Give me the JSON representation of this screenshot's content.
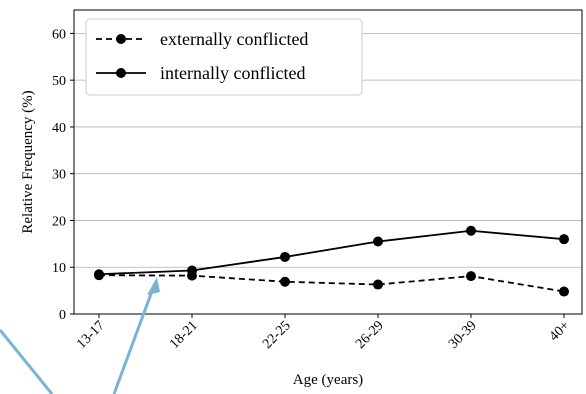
{
  "chart_data": {
    "type": "line",
    "title": "",
    "xlabel": "Age (years)",
    "ylabel": "Relative Frequency (%)",
    "categories": [
      "13-17",
      "18-21",
      "22-25",
      "26-29",
      "30-39",
      "40+"
    ],
    "y_ticks": [
      "0",
      "10",
      "20",
      "30",
      "40",
      "50",
      "60"
    ],
    "ylim": [
      0,
      65
    ],
    "grid": "horizontal",
    "legend_position": "top-left",
    "series": [
      {
        "name": "externally conflicted",
        "style": "dashed",
        "marker": "circle",
        "color": "#000000",
        "values": [
          8.3,
          8.2,
          6.9,
          6.3,
          8.1,
          4.8
        ]
      },
      {
        "name": "internally conflicted",
        "style": "solid",
        "marker": "circle",
        "color": "#000000",
        "values": [
          8.5,
          9.3,
          12.2,
          15.5,
          17.8,
          16.0
        ]
      }
    ]
  },
  "annotation": {
    "arrow_color": "#7ab3d4"
  }
}
